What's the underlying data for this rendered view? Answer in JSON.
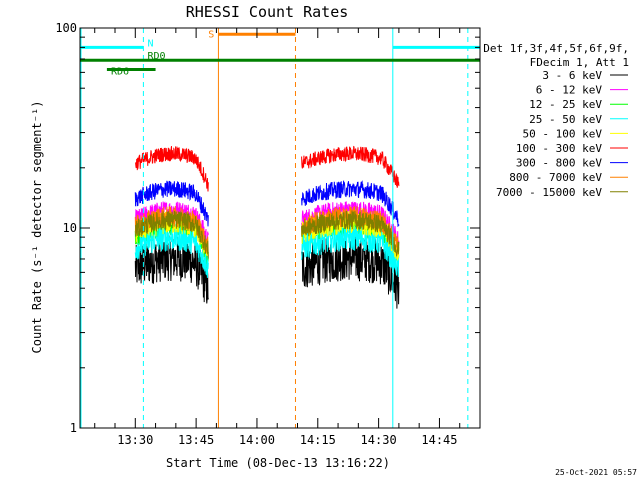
{
  "chart_data": {
    "type": "line",
    "title": "RHESSI Count Rates",
    "xlabel": "Start Time (08-Dec-13 13:16:22)",
    "ylabel": "Count Rate (s⁻¹ detector segment⁻¹)",
    "y_scale": "log",
    "ylim": [
      1,
      100
    ],
    "y_ticks": [
      {
        "value": 1,
        "label": "1"
      },
      {
        "value": 10,
        "label": "10"
      },
      {
        "value": 100,
        "label": "100"
      }
    ],
    "x_range": [
      "13:16:22",
      "14:55"
    ],
    "x_ticks": [
      "13:30",
      "13:45",
      "14:00",
      "14:15",
      "14:30",
      "14:45"
    ],
    "legend": {
      "position": "right",
      "header": [
        "Det 1f,3f,4f,5f,6f,9f,",
        "FDecim 1, Att 1"
      ],
      "entries": [
        {
          "label": "3 - 6 keV",
          "color": "#000000"
        },
        {
          "label": "6 - 12 keV",
          "color": "#ff00ff"
        },
        {
          "label": "12 - 25 keV",
          "color": "#00ff00"
        },
        {
          "label": "25 - 50 keV",
          "color": "#00ffff"
        },
        {
          "label": "50 - 100 keV",
          "color": "#ffff00"
        },
        {
          "label": "100 - 300 keV",
          "color": "#ff0000"
        },
        {
          "label": "300 - 800 keV",
          "color": "#0000ff"
        },
        {
          "label": "800 - 7000 keV",
          "color": "#ff8000"
        },
        {
          "label": "7000 - 15000 keV",
          "color": "#808000"
        }
      ]
    },
    "segments": [
      {
        "start": "13:30",
        "end": "13:48"
      },
      {
        "start": "14:11",
        "end": "14:35"
      }
    ],
    "series": [
      {
        "name": "3 - 6 keV",
        "color": "#000000",
        "level": 6.3,
        "noise": 0.12
      },
      {
        "name": "6 - 12 keV",
        "color": "#ff00ff",
        "level": 11.0,
        "noise": 0.05
      },
      {
        "name": "12 - 25 keV",
        "color": "#00ff00",
        "level": 9.2,
        "noise": 0.06
      },
      {
        "name": "25 - 50 keV",
        "color": "#00ffff",
        "level": 8.0,
        "noise": 0.07
      },
      {
        "name": "50 - 100 keV",
        "color": "#ffff00",
        "level": 9.5,
        "noise": 0.06
      },
      {
        "name": "100 - 300 keV",
        "color": "#ff0000",
        "level": 21.0,
        "noise": 0.04
      },
      {
        "name": "300 - 800 keV",
        "color": "#0000ff",
        "level": 14.0,
        "noise": 0.045
      },
      {
        "name": "800 - 7000 keV",
        "color": "#ff8000",
        "level": 10.2,
        "noise": 0.055
      },
      {
        "name": "7000 - 15000 keV",
        "color": "#808000",
        "level": 9.8,
        "noise": 0.05
      }
    ],
    "markers": {
      "night_start": "13:32",
      "night_end": "14:33:30",
      "saa_start": "13:50:30",
      "saa_end": "14:09:30",
      "other_vline": "14:52"
    },
    "flag_bars": [
      {
        "label": "N",
        "color": "#00ffff",
        "level": 80,
        "ranges": [
          [
            "13:16:22",
            "13:32"
          ],
          [
            "14:33:30",
            "14:55"
          ]
        ]
      },
      {
        "label": "RD0",
        "color": "#008000",
        "level": 69,
        "ranges": [
          [
            "13:16:22",
            "14:55"
          ]
        ]
      },
      {
        "label": "RD6",
        "color": "#008000",
        "level": 62,
        "ranges": [
          [
            "13:23",
            "13:35"
          ]
        ]
      },
      {
        "label": "S",
        "color": "#ff8000",
        "level": 93,
        "ranges": [
          [
            "13:50:30",
            "14:09:30"
          ]
        ]
      }
    ]
  },
  "footer": {
    "timestamp": "25-Oct-2021 05:57"
  }
}
